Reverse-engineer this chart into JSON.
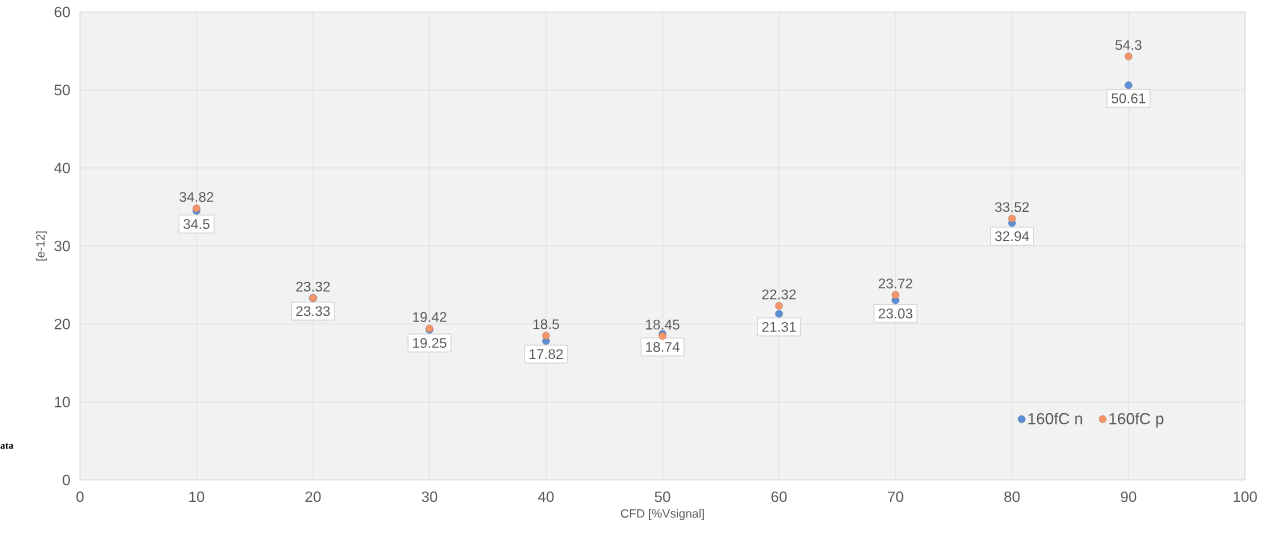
{
  "chart_data": {
    "type": "scatter",
    "xlabel": "CFD [%Vsignal]",
    "ylabel": "[e-12]",
    "x": [
      10,
      20,
      30,
      40,
      50,
      60,
      70,
      80,
      90
    ],
    "series": [
      {
        "name": "160fC n",
        "color": "#5b8fd6",
        "values": [
          34.5,
          23.33,
          19.25,
          17.82,
          18.74,
          21.31,
          23.03,
          32.94,
          50.61
        ]
      },
      {
        "name": "160fC p",
        "color": "#f4956a",
        "values": [
          34.82,
          23.32,
          19.42,
          18.5,
          18.45,
          22.32,
          23.72,
          33.52,
          54.3
        ]
      }
    ],
    "xlim": [
      0,
      100
    ],
    "xticks": [
      0,
      10,
      20,
      30,
      40,
      50,
      60,
      70,
      80,
      90,
      100
    ],
    "ylim": [
      0,
      60
    ],
    "yticks": [
      0,
      10,
      20,
      30,
      40,
      50,
      60
    ],
    "grid": true,
    "legend": "bottom right",
    "marker": "circle",
    "data_labels": true,
    "annotations": [
      "ata"
    ]
  }
}
